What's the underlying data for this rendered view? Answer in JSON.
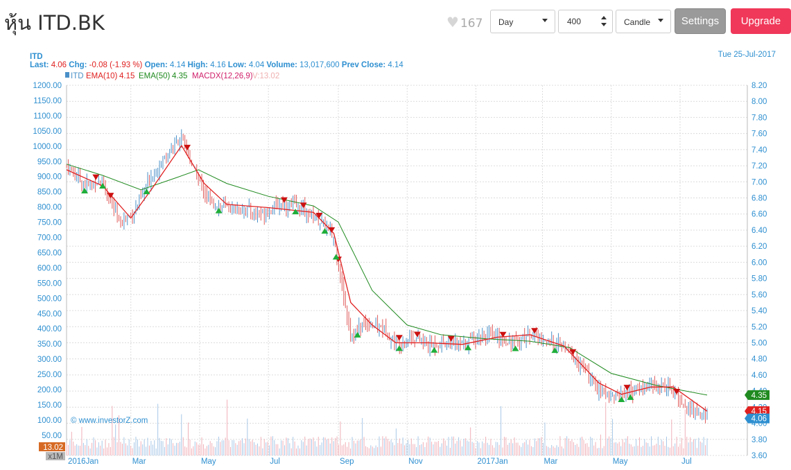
{
  "header": {
    "title": "หุ้น ITD.BK",
    "like_count": "167",
    "period": "Day",
    "count": "400",
    "chart_type": "Candle",
    "settings_label": "Settings",
    "upgrade_label": "Upgrade"
  },
  "colors": {
    "price_up": "#4a90c8",
    "price_down": "#e05a5a",
    "ema10": "#e02020",
    "ema50": "#1f8a1f",
    "accent_blue": "#2e8fd0",
    "upgrade": "#f0385a"
  },
  "chart_data": {
    "type": "line",
    "symbol": "ITD",
    "date": "Tue 25-Jul-2017",
    "info": {
      "last_label": "Last:",
      "last": "4.06",
      "chg_label": "Chg:",
      "chg": "-0.08 (-1.93 %)",
      "open_label": "Open:",
      "open": "4.14",
      "high_label": "High:",
      "high": "4.16",
      "low_label": "Low:",
      "low": "4.04",
      "volume_label": "Volume:",
      "volume": "13,017,600",
      "prev_close_label": "Prev Close:",
      "prev_close": "4.14"
    },
    "legend": {
      "price": "ITD",
      "ema10_label": "EMA(10)",
      "ema10_value": "4.15",
      "ema50_label": "EMA(50)",
      "ema50_value": "4.35",
      "macdx_label": "MACDX(12,26,9)",
      "vol_label": "V:13.02"
    },
    "x_ticks": [
      "2016Jan",
      "Mar",
      "May",
      "Jul",
      "Sep",
      "Nov",
      "2017Jan",
      "Mar",
      "May",
      "Jul"
    ],
    "left_axis": {
      "ticks": [
        "1200.00",
        "1150.00",
        "1100.00",
        "1050.00",
        "1000.00",
        "950.00",
        "900.00",
        "850.00",
        "800.00",
        "750.00",
        "700.00",
        "650.00",
        "600.00",
        "550.00",
        "500.00",
        "450.00",
        "400.00",
        "350.00",
        "300.00",
        "250.00",
        "200.00",
        "150.00",
        "100.00",
        "50.00"
      ],
      "badge": "13.02",
      "unit": "x1M"
    },
    "right_axis": {
      "ticks": [
        "8.20",
        "8.00",
        "7.80",
        "7.60",
        "7.40",
        "7.20",
        "7.00",
        "6.80",
        "6.60",
        "6.40",
        "6.20",
        "6.00",
        "5.80",
        "5.60",
        "5.40",
        "5.20",
        "5.00",
        "4.80",
        "4.60",
        "4.40",
        "4.20",
        "4.00",
        "3.80",
        "3.60"
      ],
      "ylim": [
        3.6,
        8.2
      ],
      "badges": [
        {
          "value": "4.35",
          "color": "#1f8a1f"
        },
        {
          "value": "4.15",
          "color": "#e02020"
        },
        {
          "value": "4.06",
          "color": "#2e8fd0"
        }
      ]
    },
    "watermark": "© www.investorZ.com",
    "close_series": [
      {
        "t": "2016-01-04",
        "v": 7.2
      },
      {
        "t": "2016-01-20",
        "v": 6.96
      },
      {
        "t": "2016-02-05",
        "v": 7.02
      },
      {
        "t": "2016-02-20",
        "v": 6.48
      },
      {
        "t": "2016-03-05",
        "v": 6.65
      },
      {
        "t": "2016-03-20",
        "v": 7.1
      },
      {
        "t": "2016-04-05",
        "v": 7.4
      },
      {
        "t": "2016-04-15",
        "v": 7.55
      },
      {
        "t": "2016-04-25",
        "v": 7.18
      },
      {
        "t": "2016-05-10",
        "v": 6.75
      },
      {
        "t": "2016-05-25",
        "v": 6.68
      },
      {
        "t": "2016-06-10",
        "v": 6.66
      },
      {
        "t": "2016-06-25",
        "v": 6.6
      },
      {
        "t": "2016-07-10",
        "v": 6.72
      },
      {
        "t": "2016-07-25",
        "v": 6.7
      },
      {
        "t": "2016-08-10",
        "v": 6.58
      },
      {
        "t": "2016-08-20",
        "v": 6.46
      },
      {
        "t": "2016-08-28",
        "v": 6.3
      },
      {
        "t": "2016-09-05",
        "v": 5.65
      },
      {
        "t": "2016-09-12",
        "v": 5.1
      },
      {
        "t": "2016-09-25",
        "v": 5.25
      },
      {
        "t": "2016-10-10",
        "v": 5.2
      },
      {
        "t": "2016-10-22",
        "v": 4.98
      },
      {
        "t": "2016-11-05",
        "v": 5.08
      },
      {
        "t": "2016-11-20",
        "v": 4.97
      },
      {
        "t": "2016-12-05",
        "v": 5.0
      },
      {
        "t": "2016-12-20",
        "v": 4.97
      },
      {
        "t": "2017-01-05",
        "v": 5.1
      },
      {
        "t": "2017-01-20",
        "v": 5.06
      },
      {
        "t": "2017-02-05",
        "v": 5.0
      },
      {
        "t": "2017-02-18",
        "v": 5.12
      },
      {
        "t": "2017-03-05",
        "v": 5.0
      },
      {
        "t": "2017-03-20",
        "v": 4.95
      },
      {
        "t": "2017-04-05",
        "v": 4.7
      },
      {
        "t": "2017-04-20",
        "v": 4.4
      },
      {
        "t": "2017-05-05",
        "v": 4.35
      },
      {
        "t": "2017-05-20",
        "v": 4.4
      },
      {
        "t": "2017-06-05",
        "v": 4.47
      },
      {
        "t": "2017-06-20",
        "v": 4.46
      },
      {
        "t": "2017-07-05",
        "v": 4.22
      },
      {
        "t": "2017-07-25",
        "v": 4.06
      }
    ],
    "ema10_series": [
      {
        "t": "2016-01-04",
        "v": 7.15
      },
      {
        "t": "2016-02-05",
        "v": 6.95
      },
      {
        "t": "2016-03-01",
        "v": 6.55
      },
      {
        "t": "2016-03-20",
        "v": 6.92
      },
      {
        "t": "2016-04-15",
        "v": 7.45
      },
      {
        "t": "2016-05-05",
        "v": 6.98
      },
      {
        "t": "2016-05-25",
        "v": 6.72
      },
      {
        "t": "2016-07-01",
        "v": 6.68
      },
      {
        "t": "2016-08-10",
        "v": 6.62
      },
      {
        "t": "2016-08-28",
        "v": 6.36
      },
      {
        "t": "2016-09-12",
        "v": 5.5
      },
      {
        "t": "2016-10-01",
        "v": 5.22
      },
      {
        "t": "2016-10-22",
        "v": 5.0
      },
      {
        "t": "2016-11-20",
        "v": 5.0
      },
      {
        "t": "2016-12-20",
        "v": 4.98
      },
      {
        "t": "2017-01-20",
        "v": 5.07
      },
      {
        "t": "2017-02-18",
        "v": 5.1
      },
      {
        "t": "2017-03-20",
        "v": 4.96
      },
      {
        "t": "2017-04-20",
        "v": 4.5
      },
      {
        "t": "2017-05-10",
        "v": 4.36
      },
      {
        "t": "2017-06-05",
        "v": 4.45
      },
      {
        "t": "2017-06-25",
        "v": 4.45
      },
      {
        "t": "2017-07-25",
        "v": 4.15
      }
    ],
    "ema50_series": [
      {
        "t": "2016-01-04",
        "v": 7.22
      },
      {
        "t": "2016-02-05",
        "v": 7.08
      },
      {
        "t": "2016-03-10",
        "v": 6.9
      },
      {
        "t": "2016-04-10",
        "v": 7.05
      },
      {
        "t": "2016-04-30",
        "v": 7.15
      },
      {
        "t": "2016-05-25",
        "v": 6.98
      },
      {
        "t": "2016-07-01",
        "v": 6.82
      },
      {
        "t": "2016-08-10",
        "v": 6.7
      },
      {
        "t": "2016-09-01",
        "v": 6.5
      },
      {
        "t": "2016-10-01",
        "v": 5.65
      },
      {
        "t": "2016-11-01",
        "v": 5.22
      },
      {
        "t": "2016-12-01",
        "v": 5.1
      },
      {
        "t": "2017-01-10",
        "v": 5.05
      },
      {
        "t": "2017-02-18",
        "v": 5.02
      },
      {
        "t": "2017-03-25",
        "v": 4.94
      },
      {
        "t": "2017-05-01",
        "v": 4.62
      },
      {
        "t": "2017-06-10",
        "v": 4.47
      },
      {
        "t": "2017-07-25",
        "v": 4.35
      }
    ]
  }
}
